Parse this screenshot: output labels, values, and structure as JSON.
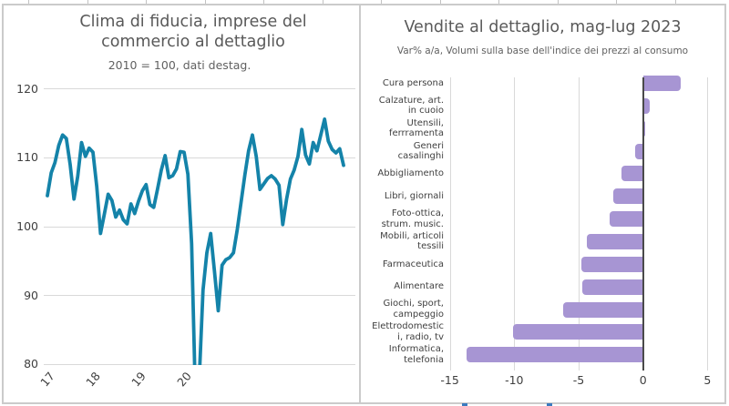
{
  "colors": {
    "line": "#1483a9",
    "bar": "#a795d3",
    "grid": "#d9d9d9",
    "zero_axis": "#4a4a4a",
    "title_text": "#595959",
    "tick_text": "#3f3f3f",
    "frame_border": "#cbcbcb"
  },
  "chart_data": [
    {
      "type": "line",
      "title": "Clima di fiducia, imprese del commercio al dettaglio",
      "subtitle": "2010 = 100, dati destag.",
      "xlabel": "",
      "ylabel": "",
      "grid": true,
      "legend": "none",
      "x_monthly_start": "2017-01",
      "x_monthly_end": "2023-07",
      "x_tick_labels": [
        "17",
        "18",
        "19",
        "20"
      ],
      "ylim": [
        80,
        120
      ],
      "yticks": [
        80,
        90,
        100,
        110,
        120
      ],
      "series": [
        {
          "name": "Clima di fiducia commercio al dettaglio",
          "values": [
            104.5,
            107.8,
            109.3,
            111.8,
            113.3,
            112.8,
            109.0,
            104.0,
            107.3,
            112.2,
            110.2,
            111.4,
            110.8,
            105.8,
            99.0,
            101.8,
            104.7,
            103.8,
            101.4,
            102.4,
            101.0,
            100.4,
            103.3,
            101.9,
            103.7,
            105.2,
            106.1,
            103.2,
            102.8,
            105.4,
            108.2,
            110.3,
            107.1,
            107.4,
            108.4,
            110.9,
            110.8,
            107.6,
            97.5,
            75.0,
            78.0,
            90.8,
            96.2,
            99.0,
            93.6,
            87.8,
            94.4,
            95.2,
            95.5,
            96.2,
            99.5,
            103.5,
            107.5,
            111.0,
            113.3,
            110.2,
            105.4,
            106.2,
            107.0,
            107.4,
            106.9,
            106.0,
            100.3,
            104.0,
            106.9,
            108.2,
            110.2,
            114.1,
            110.4,
            109.1,
            112.2,
            111.0,
            113.3,
            115.6,
            112.4,
            111.2,
            110.7,
            111.3,
            108.9
          ]
        }
      ]
    },
    {
      "type": "bar",
      "orientation": "horizontal",
      "title": "Vendite al dettaglio, mag-lug 2023",
      "subtitle": "Var% a/a, Volumi sulla base dell'indice dei prezzi al consumo",
      "xlabel": "",
      "ylabel": "",
      "grid": true,
      "legend": "none",
      "xlim": [
        -17,
        6.5
      ],
      "xticks": [
        -15,
        -10,
        -5,
        0,
        5
      ],
      "xtick_labels": [
        "-15",
        "-10",
        "-5",
        "0",
        "5"
      ],
      "categories": [
        "Cura persona",
        "Calzature, art.\nin cuoio",
        "Utensili,\nferrramenta",
        "Generi\ncasalinghi",
        "Abbigliamento",
        "Libri, giornali",
        "Foto-ottica,\nstrum. music.",
        "Mobili, articoli\ntessili",
        "Farmaceutica",
        "Alimentare",
        "Giochi, sport,\ncampeggio",
        "Elettrodomestic\ni, radio, tv",
        "Informatica,\ntelefonia"
      ],
      "values": [
        2.9,
        0.5,
        0.2,
        -0.6,
        -1.7,
        -2.3,
        -2.6,
        -4.4,
        -4.8,
        -4.7,
        -6.2,
        -10.1,
        -13.7
      ]
    }
  ]
}
